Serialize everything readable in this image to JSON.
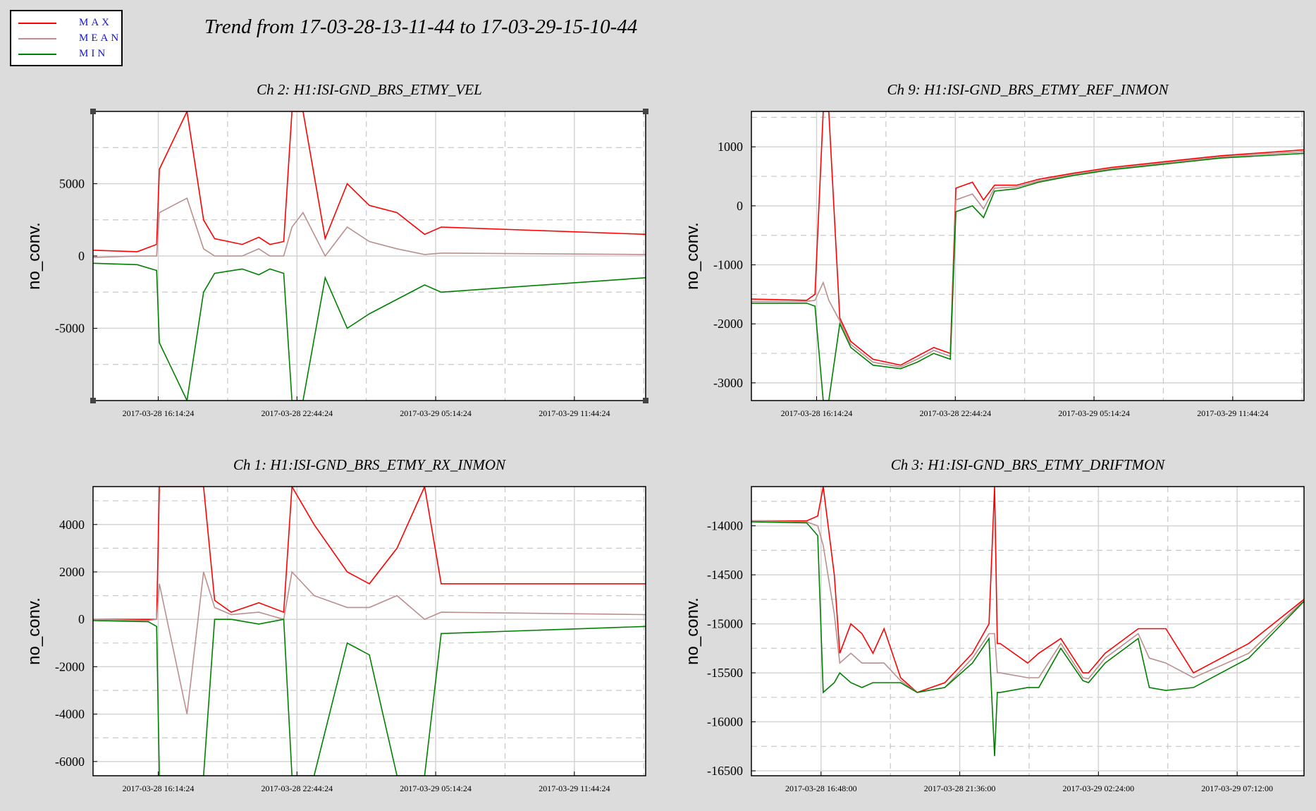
{
  "title": "Trend from 17-03-28-13-11-44 to 17-03-29-15-10-44",
  "legend": [
    {
      "label": "MAX",
      "color": "#ff0000"
    },
    {
      "label": "MEAN",
      "color": "#bc8f8f"
    },
    {
      "label": "MIN",
      "color": "#008000"
    }
  ],
  "chart_data": [
    {
      "type": "line",
      "title": "Ch 2: H1:ISI-GND_BRS_ETMY_VEL",
      "ylabel": "no_conv.",
      "xlabel": "",
      "ylim": [
        -10000,
        10000
      ],
      "yticks": [
        -5000,
        0,
        5000
      ],
      "xlim": [
        0,
        1
      ],
      "xticks": [
        {
          "pos": 0.118,
          "label": "2017-03-28 16:14:24"
        },
        {
          "pos": 0.369,
          "label": "2017-03-28 22:44:24"
        },
        {
          "pos": 0.62,
          "label": "2017-03-29 05:14:24"
        },
        {
          "pos": 0.871,
          "label": "2017-03-29 11:44:24"
        }
      ],
      "grid": true,
      "corner_marks": true,
      "baseline": "lines",
      "series": [
        {
          "name": "MAX",
          "color": "#ff0000",
          "x": [
            0,
            0.08,
            0.115,
            0.12,
            0.17,
            0.2,
            0.22,
            0.27,
            0.3,
            0.32,
            0.345,
            0.36,
            0.38,
            0.42,
            0.46,
            0.5,
            0.55,
            0.6,
            0.63,
            1
          ],
          "y": [
            400,
            300,
            800,
            6000,
            10000,
            2500,
            1200,
            800,
            1300,
            800,
            1000,
            10000,
            10000,
            1200,
            5000,
            3500,
            3000,
            1500,
            2000,
            1500
          ]
        },
        {
          "name": "MEAN",
          "color": "#bc8f8f",
          "x": [
            0,
            0.08,
            0.115,
            0.12,
            0.17,
            0.2,
            0.22,
            0.27,
            0.3,
            0.32,
            0.345,
            0.36,
            0.38,
            0.42,
            0.46,
            0.5,
            0.55,
            0.6,
            0.63,
            1
          ],
          "y": [
            -100,
            0,
            0,
            3000,
            4000,
            500,
            0,
            0,
            500,
            0,
            0,
            2000,
            3000,
            0,
            2000,
            1000,
            500,
            100,
            200,
            100
          ]
        },
        {
          "name": "MIN",
          "color": "#008000",
          "x": [
            0,
            0.08,
            0.115,
            0.12,
            0.17,
            0.2,
            0.22,
            0.27,
            0.3,
            0.32,
            0.345,
            0.36,
            0.38,
            0.42,
            0.46,
            0.5,
            0.55,
            0.6,
            0.63,
            1
          ],
          "y": [
            -500,
            -600,
            -1000,
            -6000,
            -10000,
            -2500,
            -1200,
            -900,
            -1300,
            -900,
            -1200,
            -10000,
            -10000,
            -1500,
            -5000,
            -4000,
            -3000,
            -2000,
            -2500,
            -1500
          ]
        }
      ]
    },
    {
      "type": "line",
      "title": "Ch 9: H1:ISI-GND_BRS_ETMY_REF_INMON",
      "ylabel": "no_conv.",
      "xlabel": "",
      "ylim": [
        -3300,
        1600
      ],
      "yticks": [
        -3000,
        -2000,
        -1000,
        0,
        1000
      ],
      "xlim": [
        0,
        1
      ],
      "xticks": [
        {
          "pos": 0.118,
          "label": "2017-03-28 16:14:24"
        },
        {
          "pos": 0.369,
          "label": "2017-03-28 22:44:24"
        },
        {
          "pos": 0.62,
          "label": "2017-03-29 05:14:24"
        },
        {
          "pos": 0.871,
          "label": "2017-03-29 11:44:24"
        }
      ],
      "grid": true,
      "series": [
        {
          "name": "MAX",
          "color": "#ff0000",
          "x": [
            0,
            0.1,
            0.115,
            0.13,
            0.14,
            0.16,
            0.18,
            0.22,
            0.27,
            0.3,
            0.33,
            0.36,
            0.37,
            0.4,
            0.42,
            0.44,
            0.48,
            0.52,
            0.58,
            0.65,
            0.75,
            0.85,
            1
          ],
          "y": [
            -1580,
            -1600,
            -1500,
            1600,
            1600,
            -1900,
            -2300,
            -2600,
            -2700,
            -2550,
            -2400,
            -2500,
            300,
            400,
            100,
            350,
            350,
            450,
            550,
            650,
            750,
            850,
            950
          ]
        },
        {
          "name": "MEAN",
          "color": "#bc8f8f",
          "x": [
            0,
            0.1,
            0.115,
            0.13,
            0.14,
            0.16,
            0.18,
            0.22,
            0.27,
            0.3,
            0.33,
            0.36,
            0.37,
            0.4,
            0.42,
            0.44,
            0.48,
            0.52,
            0.58,
            0.65,
            0.75,
            0.85,
            1
          ],
          "y": [
            -1620,
            -1620,
            -1600,
            -1300,
            -1600,
            -1950,
            -2350,
            -2650,
            -2730,
            -2600,
            -2450,
            -2550,
            100,
            200,
            -50,
            300,
            320,
            420,
            530,
            630,
            730,
            830,
            920
          ]
        },
        {
          "name": "MIN",
          "color": "#008000",
          "x": [
            0,
            0.1,
            0.115,
            0.13,
            0.14,
            0.16,
            0.18,
            0.22,
            0.27,
            0.3,
            0.33,
            0.36,
            0.37,
            0.4,
            0.42,
            0.44,
            0.48,
            0.52,
            0.58,
            0.65,
            0.75,
            0.85,
            1
          ],
          "y": [
            -1650,
            -1650,
            -1700,
            -3300,
            -3300,
            -2000,
            -2400,
            -2700,
            -2760,
            -2650,
            -2500,
            -2600,
            -100,
            0,
            -200,
            250,
            290,
            400,
            510,
            610,
            710,
            810,
            890
          ]
        }
      ]
    },
    {
      "type": "line",
      "title": "Ch 1: H1:ISI-GND_BRS_ETMY_RX_INMON",
      "ylabel": "no_conv.",
      "xlabel": "",
      "ylim": [
        -6600,
        5600
      ],
      "yticks": [
        -6000,
        -4000,
        -2000,
        0,
        2000,
        4000
      ],
      "xlim": [
        0,
        1
      ],
      "xticks": [
        {
          "pos": 0.118,
          "label": "2017-03-28 16:14:24"
        },
        {
          "pos": 0.369,
          "label": "2017-03-28 22:44:24"
        },
        {
          "pos": 0.62,
          "label": "2017-03-29 05:14:24"
        },
        {
          "pos": 0.871,
          "label": "2017-03-29 11:44:24"
        }
      ],
      "grid": true,
      "series": [
        {
          "name": "MAX",
          "color": "#ff0000",
          "x": [
            0,
            0.1,
            0.115,
            0.12,
            0.17,
            0.2,
            0.22,
            0.25,
            0.3,
            0.345,
            0.36,
            0.4,
            0.46,
            0.5,
            0.55,
            0.6,
            0.63,
            1
          ],
          "y": [
            0,
            0,
            0,
            5600,
            5600,
            5600,
            800,
            300,
            700,
            300,
            5600,
            4000,
            2000,
            1500,
            3000,
            5600,
            1500,
            1500
          ]
        },
        {
          "name": "MEAN",
          "color": "#bc8f8f",
          "x": [
            0,
            0.1,
            0.115,
            0.12,
            0.17,
            0.2,
            0.22,
            0.25,
            0.3,
            0.345,
            0.36,
            0.4,
            0.46,
            0.5,
            0.55,
            0.6,
            0.63,
            1
          ],
          "y": [
            0,
            -50,
            0,
            1500,
            -4000,
            2000,
            500,
            200,
            300,
            0,
            2000,
            1000,
            500,
            500,
            1000,
            0,
            300,
            200
          ]
        },
        {
          "name": "MIN",
          "color": "#008000",
          "x": [
            0,
            0.1,
            0.115,
            0.12,
            0.17,
            0.2,
            0.22,
            0.25,
            0.3,
            0.345,
            0.36,
            0.4,
            0.46,
            0.5,
            0.55,
            0.6,
            0.63,
            1
          ],
          "y": [
            -50,
            -100,
            -300,
            -6600,
            -6600,
            -6600,
            0,
            0,
            -200,
            0,
            -6600,
            -6600,
            -1000,
            -1500,
            -6600,
            -6600,
            -600,
            -300
          ]
        }
      ]
    },
    {
      "type": "line",
      "title": "Ch 3: H1:ISI-GND_BRS_ETMY_DRIFTMON",
      "ylabel": "no_conv.",
      "xlabel": "",
      "ylim": [
        -16550,
        -13600
      ],
      "yticks": [
        -16500,
        -16000,
        -15500,
        -15000,
        -14500,
        -14000
      ],
      "xlim": [
        0,
        1
      ],
      "xticks": [
        {
          "pos": 0.126,
          "label": "2017-03-28 16:48:00"
        },
        {
          "pos": 0.377,
          "label": "2017-03-28 21:36:00"
        },
        {
          "pos": 0.628,
          "label": "2017-03-29 02:24:00"
        },
        {
          "pos": 0.879,
          "label": "2017-03-29 07:12:00"
        }
      ],
      "grid": true,
      "series": [
        {
          "name": "MAX",
          "color": "#ff0000",
          "x": [
            0,
            0.1,
            0.12,
            0.13,
            0.15,
            0.16,
            0.18,
            0.2,
            0.22,
            0.24,
            0.27,
            0.3,
            0.35,
            0.4,
            0.43,
            0.44,
            0.445,
            0.45,
            0.5,
            0.52,
            0.56,
            0.6,
            0.61,
            0.64,
            0.7,
            0.72,
            0.75,
            0.8,
            0.9,
            1
          ],
          "y": [
            -13950,
            -13950,
            -13900,
            -13600,
            -14500,
            -15300,
            -15000,
            -15100,
            -15300,
            -15050,
            -15550,
            -15700,
            -15600,
            -15300,
            -15000,
            -13600,
            -15200,
            -15200,
            -15400,
            -15300,
            -15150,
            -15500,
            -15500,
            -15300,
            -15050,
            -15050,
            -15050,
            -15500,
            -15200,
            -14750
          ]
        },
        {
          "name": "MEAN",
          "color": "#bc8f8f",
          "x": [
            0,
            0.1,
            0.12,
            0.13,
            0.15,
            0.16,
            0.18,
            0.2,
            0.22,
            0.24,
            0.27,
            0.3,
            0.35,
            0.4,
            0.43,
            0.44,
            0.445,
            0.45,
            0.5,
            0.52,
            0.56,
            0.6,
            0.61,
            0.64,
            0.7,
            0.72,
            0.75,
            0.8,
            0.9,
            1
          ],
          "y": [
            -13950,
            -13960,
            -14000,
            -14200,
            -14900,
            -15400,
            -15300,
            -15400,
            -15400,
            -15400,
            -15580,
            -15700,
            -15650,
            -15350,
            -15100,
            -15100,
            -15500,
            -15500,
            -15550,
            -15550,
            -15200,
            -15550,
            -15560,
            -15350,
            -15100,
            -15350,
            -15400,
            -15550,
            -15300,
            -14760
          ]
        },
        {
          "name": "MIN",
          "color": "#008000",
          "x": [
            0,
            0.1,
            0.12,
            0.13,
            0.15,
            0.16,
            0.18,
            0.2,
            0.22,
            0.24,
            0.27,
            0.3,
            0.35,
            0.4,
            0.43,
            0.44,
            0.445,
            0.45,
            0.5,
            0.52,
            0.56,
            0.6,
            0.61,
            0.64,
            0.7,
            0.72,
            0.75,
            0.8,
            0.9,
            1
          ],
          "y": [
            -13960,
            -13970,
            -14100,
            -15700,
            -15600,
            -15500,
            -15600,
            -15650,
            -15600,
            -15600,
            -15600,
            -15700,
            -15650,
            -15400,
            -15150,
            -16350,
            -15700,
            -15700,
            -15650,
            -15650,
            -15250,
            -15580,
            -15600,
            -15400,
            -15150,
            -15650,
            -15680,
            -15650,
            -15350,
            -14770
          ]
        }
      ]
    }
  ]
}
